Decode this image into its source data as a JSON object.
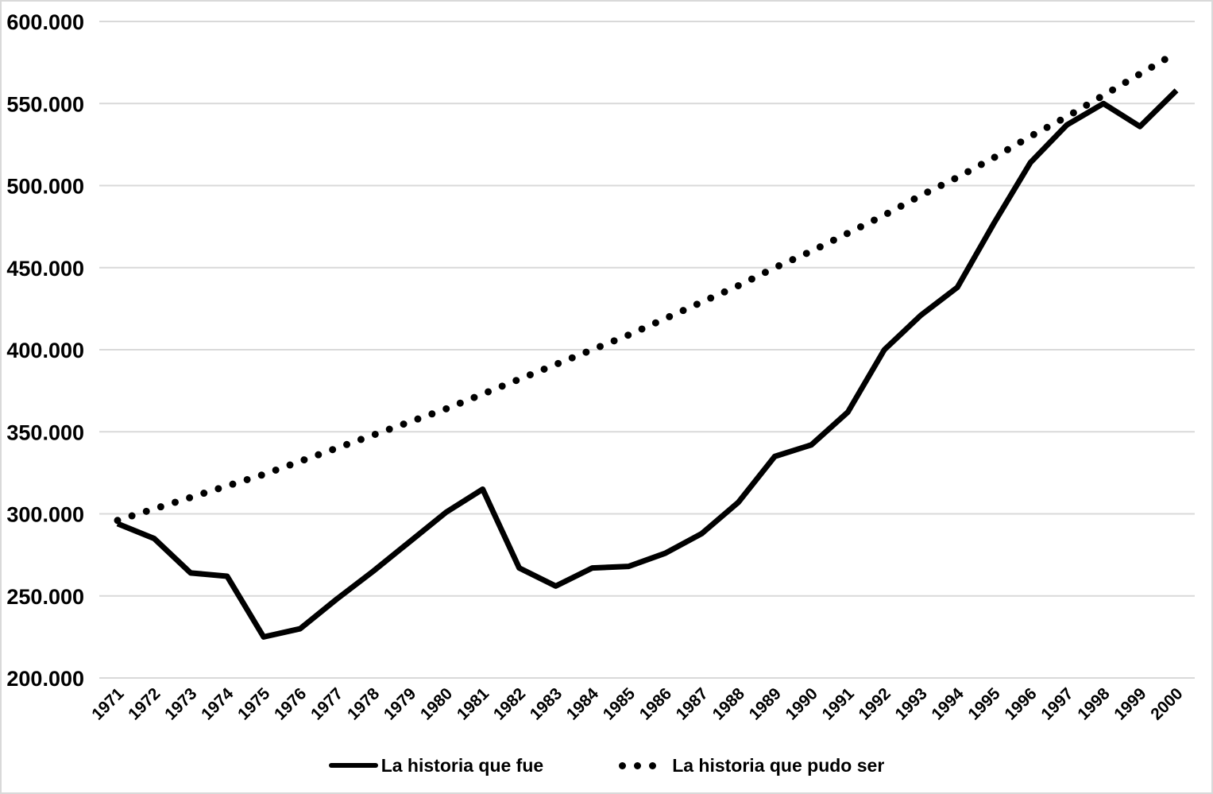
{
  "chart_data": {
    "type": "line",
    "title": "",
    "xlabel": "",
    "ylabel": "",
    "x": [
      "1971",
      "1972",
      "1973",
      "1974",
      "1975",
      "1976",
      "1977",
      "1978",
      "1979",
      "1980",
      "1981",
      "1982",
      "1983",
      "1984",
      "1985",
      "1986",
      "1987",
      "1988",
      "1989",
      "1990",
      "1991",
      "1992",
      "1993",
      "1994",
      "1995",
      "1996",
      "1997",
      "1998",
      "1999",
      "2000"
    ],
    "series": [
      {
        "name": "La historia que fue",
        "style": "solid",
        "values": [
          294000,
          285000,
          264000,
          262000,
          225000,
          230000,
          248000,
          265000,
          283000,
          301000,
          315000,
          267000,
          256000,
          267000,
          268000,
          276000,
          288000,
          307000,
          335000,
          342000,
          362000,
          400000,
          421000,
          438000,
          477000,
          514000,
          537000,
          550000,
          536000,
          558000
        ]
      },
      {
        "name": "La historia que pudo ser",
        "style": "dotted",
        "values": [
          296000,
          303000,
          310000,
          317000,
          324000,
          332000,
          340000,
          348000,
          356000,
          364000,
          373000,
          382000,
          391000,
          400000,
          409000,
          419000,
          429000,
          439000,
          450000,
          460000,
          471000,
          482000,
          494000,
          505000,
          517000,
          530000,
          542000,
          555000,
          568000,
          581000
        ]
      }
    ],
    "ylim": [
      200000,
      600000
    ],
    "ytick_step": 50000,
    "yticks": [
      {
        "value": 600000,
        "label": "600.000"
      },
      {
        "value": 550000,
        "label": "550.000"
      },
      {
        "value": 500000,
        "label": "500.000"
      },
      {
        "value": 450000,
        "label": "450.000"
      },
      {
        "value": 400000,
        "label": "400.000"
      },
      {
        "value": 350000,
        "label": "350.000"
      },
      {
        "value": 300000,
        "label": "300.000"
      },
      {
        "value": 250000,
        "label": "250.000"
      },
      {
        "value": 200000,
        "label": "200.000"
      }
    ],
    "grid": "horizontal",
    "grid_color": "#d9d9d9",
    "line_color": "#000000",
    "legend_position": "bottom"
  }
}
